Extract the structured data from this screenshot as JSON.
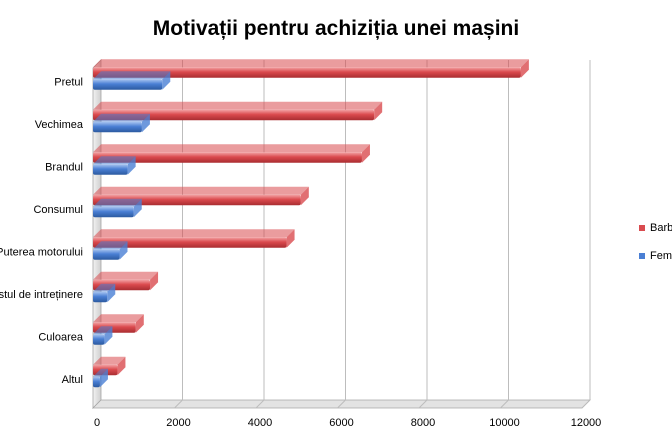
{
  "colors": {
    "barbati": "#d94b4f",
    "femei": "#4a7fd4",
    "grid": "#bdbdbd",
    "floor": "#e3e3e3"
  },
  "chart_data": {
    "type": "bar",
    "orientation": "horizontal",
    "title": "Motivații pentru achiziția unei mașini",
    "categories": [
      "Pretul",
      "Vechimea",
      "Brandul",
      "Consumul",
      "Puterea motorului",
      "Costul de intreținere",
      "Culoarea",
      "Altul"
    ],
    "series": [
      {
        "name": "Barbati",
        "values": [
          10500,
          6900,
          6600,
          5100,
          4750,
          1400,
          1050,
          600
        ]
      },
      {
        "name": "Femei",
        "values": [
          1700,
          1200,
          850,
          1000,
          650,
          350,
          280,
          170
        ]
      }
    ],
    "xlim": [
      0,
      12000
    ],
    "xticks": [
      "0",
      "2000",
      "4000",
      "6000",
      "8000",
      "10000",
      "12000"
    ],
    "grid": true,
    "legend": "right"
  }
}
